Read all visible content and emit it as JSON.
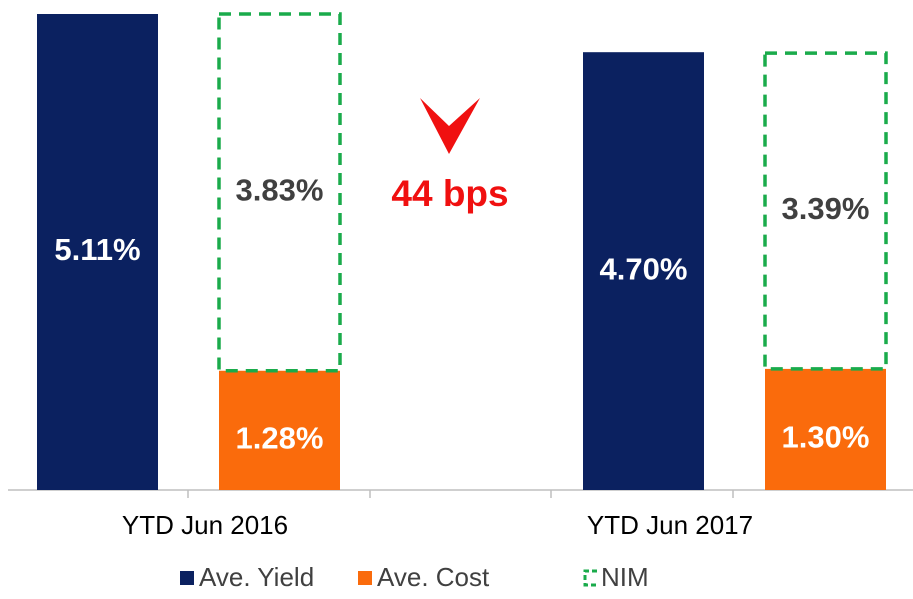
{
  "chart_data": {
    "type": "bar",
    "categories": [
      "YTD Jun 2016",
      "YTD Jun 2017"
    ],
    "series": [
      {
        "name": "Ave. Yield",
        "color": "#0b2160",
        "values": [
          5.11,
          4.7
        ],
        "value_labels": [
          "5.11%",
          "4.70%"
        ]
      },
      {
        "name": "Ave. Cost",
        "color": "#fa6b0c",
        "values": [
          1.28,
          1.3
        ],
        "value_labels": [
          "1.28%",
          "1.30%"
        ]
      },
      {
        "name": "NIM",
        "color": "#1aab4b",
        "dashed": true,
        "values": [
          3.83,
          3.39
        ],
        "value_labels": [
          "3.83%",
          "3.39%"
        ]
      }
    ],
    "annotation": "44 bps",
    "annotation_color": "#f01010"
  }
}
